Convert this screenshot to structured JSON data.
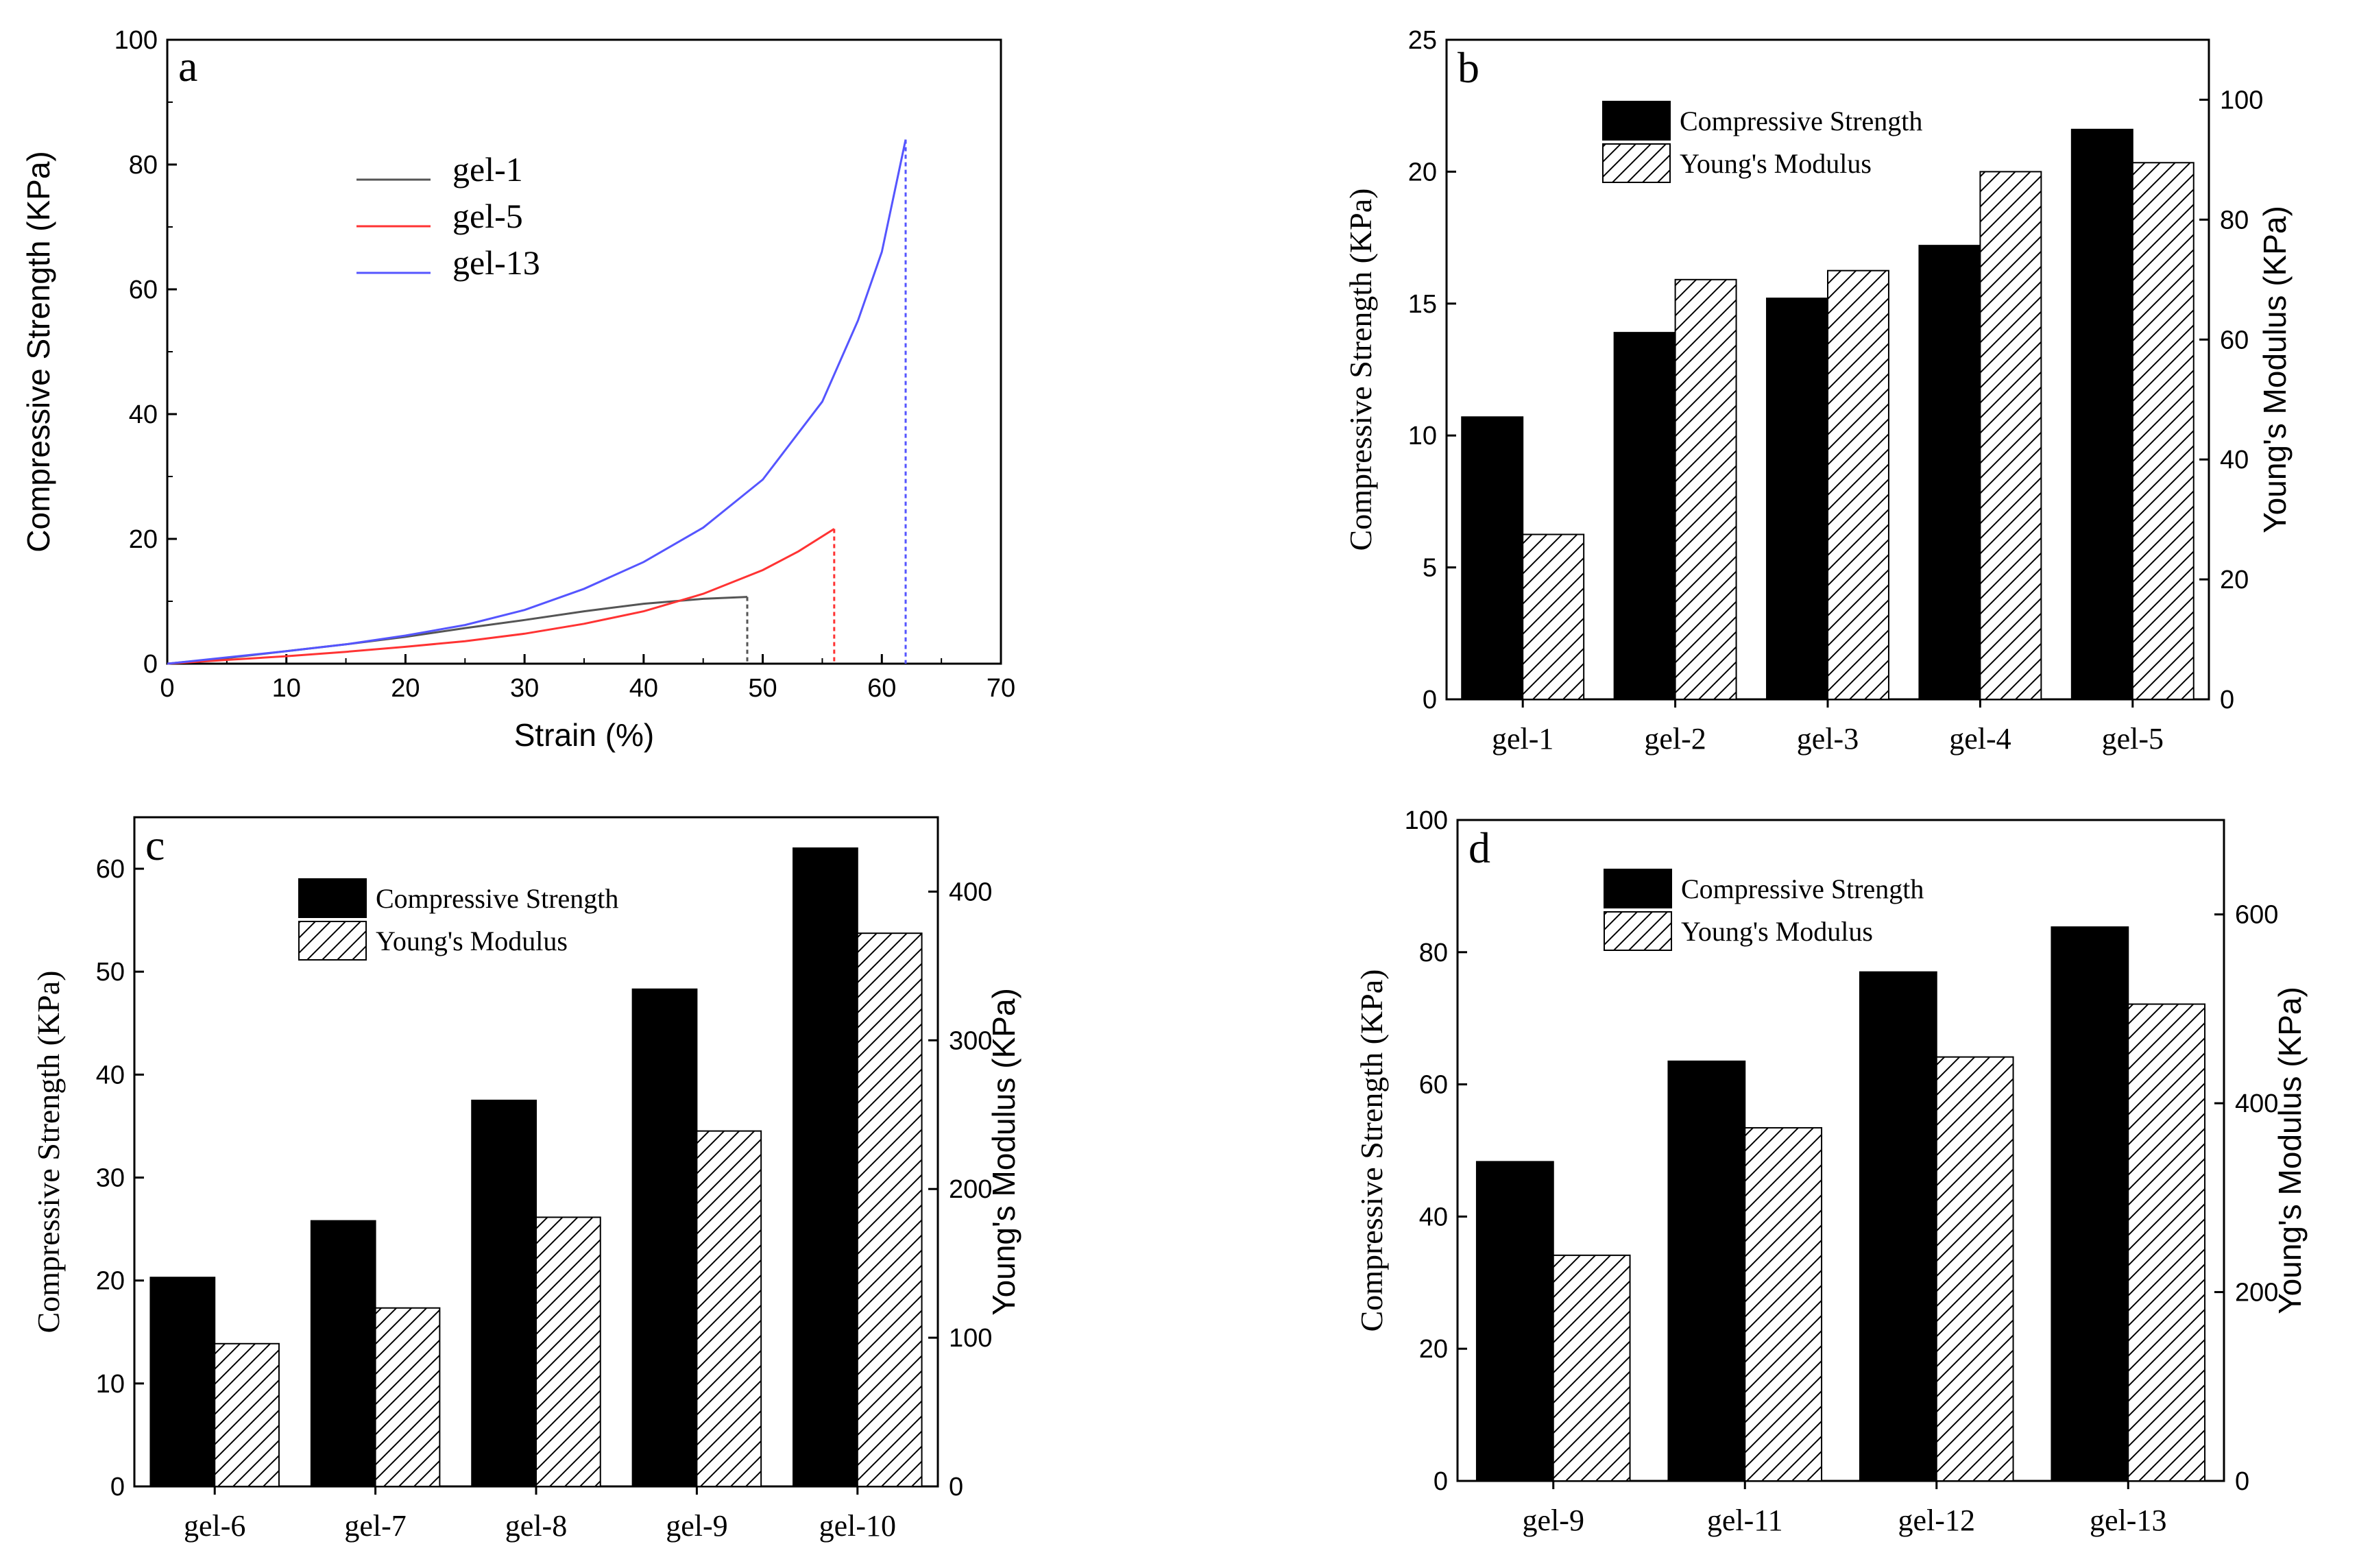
{
  "chart_data": [
    {
      "panel": "a",
      "type": "line",
      "panel_label": "a",
      "xlabel": "Strain (%)",
      "ylabel": "Compressive Strength (KPa)",
      "xlim": [
        0,
        70
      ],
      "ylim": [
        0,
        100
      ],
      "xticks": [
        0,
        10,
        20,
        30,
        40,
        50,
        60,
        70
      ],
      "yticks": [
        0,
        20,
        40,
        60,
        80,
        100
      ],
      "legend": "upper-left",
      "series": [
        {
          "name": "gel-1",
          "color": "#555555",
          "x": [
            0,
            5,
            10,
            15,
            20,
            25,
            30,
            35,
            40,
            45,
            48.7
          ],
          "y": [
            0,
            0.9,
            2.0,
            3.1,
            4.3,
            5.7,
            7.0,
            8.4,
            9.6,
            10.4,
            10.7
          ],
          "break_x": 48.7
        },
        {
          "name": "gel-5",
          "color": "#ff3333",
          "x": [
            0,
            5,
            10,
            15,
            20,
            25,
            30,
            35,
            40,
            45,
            50,
            53,
            56
          ],
          "y": [
            0,
            0.6,
            1.2,
            1.9,
            2.7,
            3.6,
            4.8,
            6.4,
            8.4,
            11.2,
            15.0,
            18.0,
            21.6
          ],
          "break_x": 56
        },
        {
          "name": "gel-13",
          "color": "#5555ff",
          "x": [
            0,
            5,
            10,
            15,
            20,
            25,
            30,
            35,
            40,
            45,
            50,
            55,
            58,
            60,
            62
          ],
          "y": [
            0,
            1.0,
            2.0,
            3.1,
            4.5,
            6.2,
            8.6,
            12.0,
            16.3,
            21.8,
            29.5,
            42.0,
            55.0,
            66.0,
            84.0
          ],
          "break_x": 62
        }
      ]
    },
    {
      "panel": "b",
      "type": "bar",
      "panel_label": "b",
      "categories": [
        "gel-1",
        "gel-2",
        "gel-3",
        "gel-4",
        "gel-5"
      ],
      "series": [
        {
          "name": "Compressive Strength",
          "axis": "left",
          "values": [
            10.7,
            13.9,
            15.2,
            17.2,
            21.6
          ]
        },
        {
          "name": "Young's Modulus",
          "axis": "right",
          "values": [
            27.5,
            70.0,
            71.5,
            88.0,
            89.5
          ]
        }
      ],
      "ylabel": "Compressive Strength (KPa)",
      "y2label": "Young's Modulus (KPa)",
      "ylim": [
        0,
        25
      ],
      "yticks": [
        0,
        5,
        10,
        15,
        20,
        25
      ],
      "y2lim": [
        0,
        110
      ],
      "y2ticks": [
        0,
        20,
        40,
        60,
        80,
        100
      ],
      "legend": "top-left"
    },
    {
      "panel": "c",
      "type": "bar",
      "panel_label": "c",
      "categories": [
        "gel-6",
        "gel-7",
        "gel-8",
        "gel-9",
        "gel-10"
      ],
      "series": [
        {
          "name": "Compressive Strength",
          "axis": "left",
          "values": [
            20.3,
            25.8,
            37.5,
            48.3,
            62.0
          ]
        },
        {
          "name": "Young's Modulus",
          "axis": "right",
          "values": [
            96,
            120,
            181,
            239,
            372
          ]
        }
      ],
      "ylabel": "Compressive Strength (KPa)",
      "y2label": "Young's Modulus (KPa)",
      "ylim": [
        0,
        65
      ],
      "yticks": [
        0,
        10,
        20,
        30,
        40,
        50,
        60
      ],
      "y2lim": [
        0,
        450
      ],
      "y2ticks": [
        0,
        100,
        200,
        300,
        400
      ],
      "legend": "top-left"
    },
    {
      "panel": "d",
      "type": "bar",
      "panel_label": "d",
      "categories": [
        "gel-9",
        "gel-11",
        "gel-12",
        "gel-13"
      ],
      "series": [
        {
          "name": "Compressive Strength",
          "axis": "left",
          "values": [
            48.3,
            63.5,
            77.0,
            83.8
          ]
        },
        {
          "name": "Young's Modulus",
          "axis": "right",
          "values": [
            239,
            374,
            449,
            505
          ]
        }
      ],
      "ylabel": "Compressive Strength (KPa)",
      "y2label": "Young's Modulus (KPa)",
      "ylim": [
        0,
        100
      ],
      "yticks": [
        0,
        20,
        40,
        60,
        80,
        100
      ],
      "y2lim": [
        0,
        700
      ],
      "y2ticks": [
        0,
        200,
        400,
        600
      ],
      "legend": "top-left"
    }
  ]
}
